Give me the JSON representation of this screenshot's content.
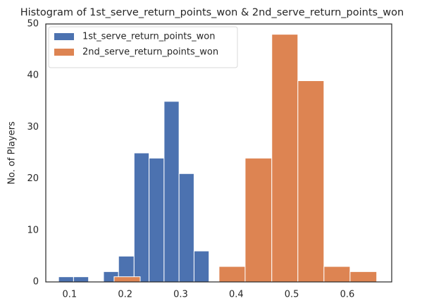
{
  "chart_data": {
    "type": "histogram",
    "title": "Histogram of 1st_serve_return_points_won & 2nd_serve_return_points_won",
    "ylabel": "No. of Players",
    "series": [
      {
        "name": "1st_serve_return_points_won",
        "color": "#4c72b0",
        "bins": [
          0.08,
          0.107,
          0.134,
          0.161,
          0.188,
          0.216,
          0.243,
          0.27,
          0.297,
          0.324,
          0.351
        ],
        "values": [
          1,
          1,
          0,
          2,
          5,
          25,
          24,
          35,
          21,
          6
        ]
      },
      {
        "name": "2nd_serve_return_points_won",
        "color": "#dd8452",
        "bins": [
          0.18,
          0.227,
          0.275,
          0.322,
          0.369,
          0.416,
          0.464,
          0.511,
          0.558,
          0.605,
          0.653
        ],
        "values": [
          1,
          0,
          0,
          0,
          3,
          24,
          48,
          39,
          3,
          2
        ]
      }
    ],
    "xlim": [
      0.057,
      0.68
    ],
    "ylim": [
      0,
      50
    ],
    "xticks": [
      0.1,
      0.2,
      0.3,
      0.4,
      0.5,
      0.6
    ],
    "yticks": [
      0,
      10,
      20,
      30,
      40,
      50
    ],
    "legend": "upper left",
    "grid": false
  }
}
